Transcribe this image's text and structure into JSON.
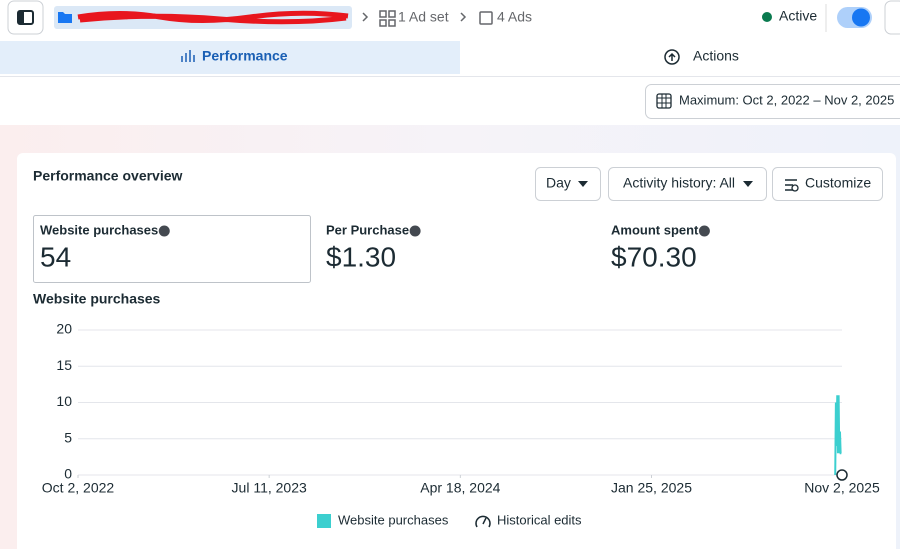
{
  "header": {
    "breadcrumb": [
      "1 Ad set",
      "4 Ads"
    ],
    "status": "Active"
  },
  "tabs": [
    "Performance",
    "Actions"
  ],
  "date_range": "Maximum: Oct 2, 2022 – Nov 2, 2025",
  "card": {
    "title": "Performance overview",
    "controls": [
      "Day",
      "Activity history: All",
      "Customize"
    ],
    "metrics": [
      {
        "label": "Website purchases",
        "value": "54"
      },
      {
        "label": "Per Purchase",
        "value": "$1.30"
      },
      {
        "label": "Amount spent",
        "value": "$70.30"
      }
    ]
  },
  "chart_data": {
    "type": "line",
    "title": "Website purchases",
    "x": [
      "2025-10-23",
      "2025-10-24",
      "2025-10-25",
      "2025-10-26",
      "2025-10-27",
      "2025-10-28",
      "2025-10-29",
      "2025-10-30",
      "2025-10-31",
      "2025-11-01"
    ],
    "series": [
      {
        "name": "Website purchases",
        "color": "#3ccfcf",
        "values": [
          0,
          10,
          4,
          11,
          3,
          11,
          3,
          6,
          3,
          3
        ]
      }
    ],
    "xlim": [
      "2022-10-02",
      "2025-11-02"
    ],
    "xticks": [
      {
        "value": "2022-10-02",
        "label": "Oct 2, 2022"
      },
      {
        "value": "2023-07-11",
        "label": "Jul 11, 2023"
      },
      {
        "value": "2024-04-18",
        "label": "Apr 18, 2024"
      },
      {
        "value": "2025-01-25",
        "label": "Jan 25, 2025"
      },
      {
        "value": "2025-11-02",
        "label": "Nov 2, 2025"
      }
    ],
    "ylim": [
      0,
      20
    ],
    "yticks": [
      0,
      5,
      10,
      15,
      20
    ],
    "grid": true,
    "annotations": [
      "Historical edits"
    ]
  }
}
